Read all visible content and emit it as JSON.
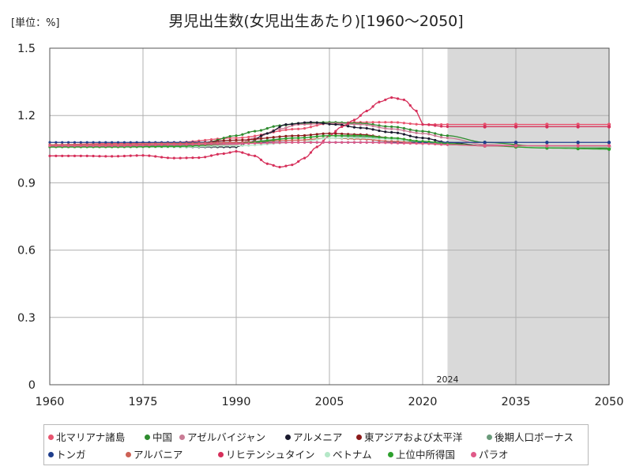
{
  "chart_data": {
    "type": "line",
    "title": "男児出生数(女児出生あたり)[1960～2050]",
    "unit_label": "[単位：%]",
    "xlim": [
      1960,
      2050
    ],
    "ylim": [
      0,
      1.5
    ],
    "x_ticks": [
      "1960",
      "1975",
      "1990",
      "2005",
      "2020",
      "2035",
      "2050"
    ],
    "y_ticks": [
      "0",
      "0.3",
      "0.6",
      "0.9",
      "1.2",
      "1.5"
    ],
    "grid": true,
    "forecast_start": 2024,
    "forecast_label": "2024",
    "forecast_shade_color": "#d9d9d9",
    "legend_position": "bottom",
    "series": [
      {
        "name": "北マリアナ諸島",
        "color": "#e8546f",
        "points": [
          [
            1960,
            1.07
          ],
          [
            1970,
            1.075
          ],
          [
            1980,
            1.08
          ],
          [
            1990,
            1.1
          ],
          [
            2000,
            1.14
          ],
          [
            2005,
            1.165
          ],
          [
            2010,
            1.17
          ],
          [
            2015,
            1.17
          ],
          [
            2020,
            1.16
          ],
          [
            2024,
            1.16
          ],
          [
            2030,
            1.16
          ],
          [
            2040,
            1.16
          ],
          [
            2050,
            1.16
          ]
        ]
      },
      {
        "name": "中国",
        "color": "#2e8b2e",
        "points": [
          [
            1960,
            1.065
          ],
          [
            1970,
            1.065
          ],
          [
            1980,
            1.068
          ],
          [
            1985,
            1.08
          ],
          [
            1990,
            1.11
          ],
          [
            1993,
            1.13
          ],
          [
            1997,
            1.155
          ],
          [
            2000,
            1.165
          ],
          [
            2005,
            1.17
          ],
          [
            2010,
            1.165
          ],
          [
            2015,
            1.15
          ],
          [
            2020,
            1.13
          ],
          [
            2024,
            1.11
          ],
          [
            2030,
            1.08
          ],
          [
            2040,
            1.06
          ],
          [
            2050,
            1.055
          ]
        ]
      },
      {
        "name": "アゼルバイジャン",
        "color": "#c97b95",
        "points": [
          [
            1960,
            1.06
          ],
          [
            1970,
            1.06
          ],
          [
            1980,
            1.062
          ],
          [
            1990,
            1.07
          ],
          [
            1993,
            1.1
          ],
          [
            1997,
            1.14
          ],
          [
            2000,
            1.16
          ],
          [
            2005,
            1.165
          ],
          [
            2010,
            1.16
          ],
          [
            2015,
            1.14
          ],
          [
            2020,
            1.12
          ],
          [
            2024,
            1.1
          ],
          [
            2030,
            1.07
          ],
          [
            2040,
            1.06
          ],
          [
            2050,
            1.06
          ]
        ]
      },
      {
        "name": "アルメニア",
        "color": "#1a1a2e",
        "points": [
          [
            1960,
            1.06
          ],
          [
            1970,
            1.06
          ],
          [
            1980,
            1.06
          ],
          [
            1990,
            1.06
          ],
          [
            1992,
            1.08
          ],
          [
            1995,
            1.12
          ],
          [
            1998,
            1.16
          ],
          [
            2002,
            1.17
          ],
          [
            2006,
            1.16
          ],
          [
            2010,
            1.145
          ],
          [
            2015,
            1.125
          ],
          [
            2020,
            1.1
          ],
          [
            2024,
            1.08
          ],
          [
            2030,
            1.065
          ],
          [
            2040,
            1.06
          ],
          [
            2050,
            1.06
          ]
        ]
      },
      {
        "name": "東アジアおよび太平洋",
        "color": "#8b1a1a",
        "points": [
          [
            1960,
            1.06
          ],
          [
            1970,
            1.065
          ],
          [
            1980,
            1.07
          ],
          [
            1990,
            1.09
          ],
          [
            2000,
            1.11
          ],
          [
            2005,
            1.12
          ],
          [
            2010,
            1.115
          ],
          [
            2015,
            1.1
          ],
          [
            2020,
            1.085
          ],
          [
            2024,
            1.075
          ],
          [
            2030,
            1.065
          ],
          [
            2040,
            1.06
          ],
          [
            2050,
            1.06
          ]
        ]
      },
      {
        "name": "後期人口ボーナス",
        "color": "#6a9a7a",
        "points": [
          [
            1960,
            1.06
          ],
          [
            1970,
            1.06
          ],
          [
            1980,
            1.065
          ],
          [
            1990,
            1.08
          ],
          [
            2000,
            1.1
          ],
          [
            2005,
            1.11
          ],
          [
            2010,
            1.105
          ],
          [
            2015,
            1.095
          ],
          [
            2020,
            1.08
          ],
          [
            2024,
            1.07
          ],
          [
            2030,
            1.065
          ],
          [
            2040,
            1.06
          ],
          [
            2050,
            1.06
          ]
        ]
      },
      {
        "name": "トンガ",
        "color": "#1f3e8c",
        "points": [
          [
            1960,
            1.08
          ],
          [
            1970,
            1.08
          ],
          [
            1980,
            1.08
          ],
          [
            1990,
            1.08
          ],
          [
            2000,
            1.08
          ],
          [
            2010,
            1.08
          ],
          [
            2020,
            1.08
          ],
          [
            2024,
            1.08
          ],
          [
            2030,
            1.08
          ],
          [
            2040,
            1.08
          ],
          [
            2050,
            1.08
          ]
        ]
      },
      {
        "name": "アルバニア",
        "color": "#cd6155",
        "points": [
          [
            1960,
            1.07
          ],
          [
            1970,
            1.07
          ],
          [
            1980,
            1.075
          ],
          [
            1990,
            1.08
          ],
          [
            2000,
            1.09
          ],
          [
            2005,
            1.1
          ],
          [
            2010,
            1.095
          ],
          [
            2015,
            1.085
          ],
          [
            2020,
            1.075
          ],
          [
            2024,
            1.07
          ],
          [
            2030,
            1.065
          ],
          [
            2040,
            1.065
          ],
          [
            2050,
            1.065
          ]
        ]
      },
      {
        "name": "リヒテンシュタイン",
        "color": "#d62f5a",
        "points": [
          [
            1960,
            1.02
          ],
          [
            1965,
            1.02
          ],
          [
            1970,
            1.018
          ],
          [
            1975,
            1.022
          ],
          [
            1980,
            1.01
          ],
          [
            1984,
            1.012
          ],
          [
            1988,
            1.03
          ],
          [
            1990,
            1.04
          ],
          [
            1993,
            1.02
          ],
          [
            1995,
            0.985
          ],
          [
            1997,
            0.97
          ],
          [
            1999,
            0.98
          ],
          [
            2001,
            1.01
          ],
          [
            2003,
            1.06
          ],
          [
            2005,
            1.11
          ],
          [
            2007,
            1.15
          ],
          [
            2009,
            1.18
          ],
          [
            2011,
            1.22
          ],
          [
            2013,
            1.26
          ],
          [
            2015,
            1.28
          ],
          [
            2017,
            1.27
          ],
          [
            2019,
            1.22
          ],
          [
            2020,
            1.16
          ],
          [
            2024,
            1.15
          ],
          [
            2030,
            1.15
          ],
          [
            2040,
            1.15
          ],
          [
            2050,
            1.15
          ]
        ]
      },
      {
        "name": "ベトナム",
        "color": "#b5e8c8",
        "points": [
          [
            1960,
            1.06
          ],
          [
            1970,
            1.06
          ],
          [
            1980,
            1.06
          ],
          [
            1990,
            1.065
          ],
          [
            2000,
            1.08
          ],
          [
            2005,
            1.1
          ],
          [
            2010,
            1.1
          ],
          [
            2015,
            1.095
          ],
          [
            2020,
            1.085
          ],
          [
            2024,
            1.075
          ],
          [
            2030,
            1.065
          ],
          [
            2040,
            1.06
          ],
          [
            2050,
            1.06
          ]
        ]
      },
      {
        "name": "上位中所得国",
        "color": "#2da02d",
        "points": [
          [
            1960,
            1.06
          ],
          [
            1970,
            1.06
          ],
          [
            1980,
            1.062
          ],
          [
            1990,
            1.075
          ],
          [
            2000,
            1.1
          ],
          [
            2005,
            1.11
          ],
          [
            2010,
            1.11
          ],
          [
            2015,
            1.1
          ],
          [
            2020,
            1.085
          ],
          [
            2024,
            1.075
          ],
          [
            2030,
            1.065
          ],
          [
            2040,
            1.055
          ],
          [
            2050,
            1.05
          ]
        ]
      },
      {
        "name": "パラオ",
        "color": "#e05a88",
        "points": [
          [
            1960,
            1.065
          ],
          [
            1970,
            1.065
          ],
          [
            1980,
            1.07
          ],
          [
            1990,
            1.075
          ],
          [
            2000,
            1.08
          ],
          [
            2010,
            1.08
          ],
          [
            2020,
            1.075
          ],
          [
            2024,
            1.07
          ],
          [
            2030,
            1.065
          ],
          [
            2040,
            1.065
          ],
          [
            2050,
            1.065
          ]
        ]
      }
    ]
  }
}
